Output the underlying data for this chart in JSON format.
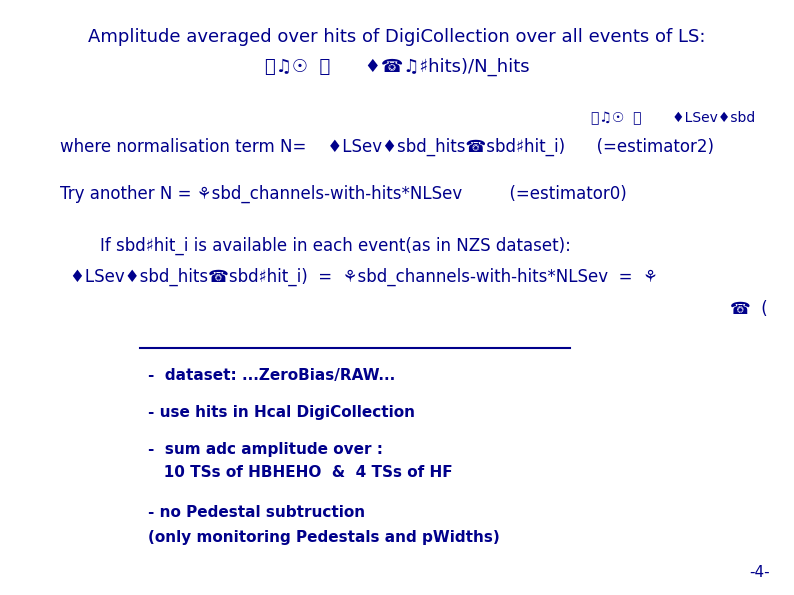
{
  "bg_color": "#ffffff",
  "text_color": "#00008B",
  "title_line1": "Amplitude averaged over hits of DigiCollection over all events of LS:",
  "title_line2_sym": "⎗♫☉  ⎗      ♦☎♫♯hits)/N_hits",
  "extra_sym_line": "⎗♫☉  ⎗       ♦LSev♦sbd",
  "norm_line": "where normalisation term N=    ♦LSev♦sbd_hits☎sbd♯hit_i)      (=estimator2)",
  "try_line": "Try another N = ⚘sbd_channels-with-hits*NLSev         (=estimator0)",
  "if_line": "If sbd♯hit_i is available in each event(as in NZS dataset):",
  "formula_line": "♦LSev♦sbd_hits☎sbd♯hit_i)  =  ⚘sbd_channels-with-hits*NLSev  =  ⚘",
  "extra_right": "☎  (",
  "bullet1": "-  dataset: ...ZeroBias/RAW...",
  "bullet2": "- use hits in Hcal DigiCollection",
  "bullet3a": "-  sum adc amplitude over :",
  "bullet3b": "   10 TSs of HBHEHO  &  4 TSs of HF",
  "bullet4a": "- no Pedestal subtruction",
  "bullet4b": "(only monitoring Pedestals and pWidths)",
  "page_num": "-4-"
}
